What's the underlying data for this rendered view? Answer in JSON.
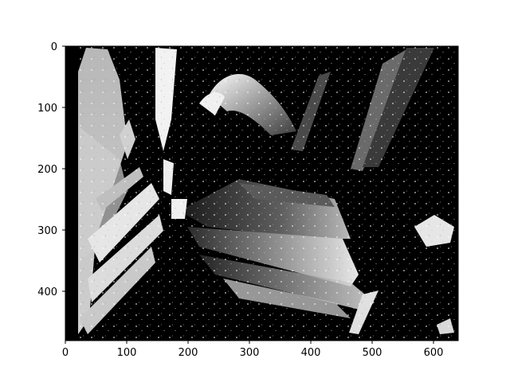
{
  "figure": {
    "background": "#ffffff",
    "image_description_colormap": "grayscale",
    "x_ticks": [
      "0",
      "100",
      "200",
      "300",
      "400",
      "500",
      "600"
    ],
    "y_ticks": [
      "0",
      "100",
      "200",
      "300",
      "400"
    ],
    "x_range": [
      0,
      640
    ],
    "y_range": [
      480,
      0
    ],
    "colors": {
      "axis": "#000000",
      "dark": "#000000",
      "light": "#f2f2f2",
      "mid": "#7a7a7a"
    }
  }
}
